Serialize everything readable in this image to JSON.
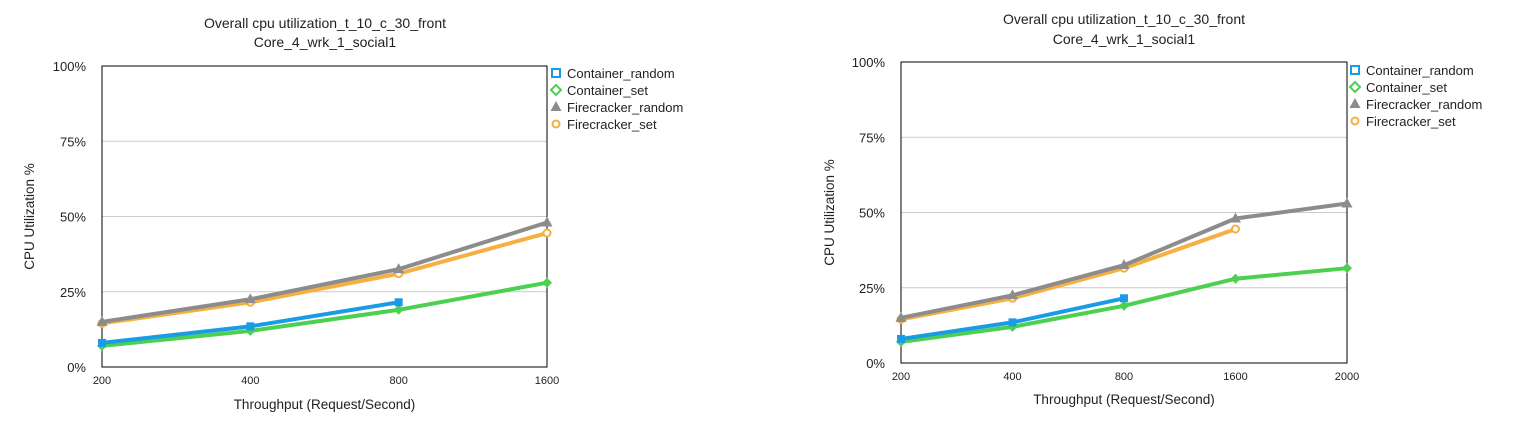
{
  "colors": {
    "Container_random": "#1a9be6",
    "Container_set": "#4cd050",
    "Firecracker_random": "#8c8c8c",
    "Firecracker_set": "#f5b041",
    "grid": "#cccccc",
    "plot_border": "#000000"
  },
  "chart_data": [
    {
      "type": "line",
      "title": "Overall cpu utilization_t_10_c_30_front",
      "subtitle": "Core_4_wrk_1_social1",
      "xlabel": "Throughput (Request/Second)",
      "ylabel": "CPU Utilization %",
      "x_scale": "categorical",
      "categories": [
        "200",
        "400",
        "800",
        "1600"
      ],
      "ylim": [
        0,
        100
      ],
      "yticks": [
        0,
        25,
        50,
        75,
        100
      ],
      "ytick_labels": [
        "0%",
        "25%",
        "50%",
        "75%",
        "100%"
      ],
      "grid": "horizontal",
      "legend": "right",
      "series": [
        {
          "name": "Container_random",
          "marker": "square",
          "values": [
            8,
            13.5,
            21.5,
            null
          ]
        },
        {
          "name": "Container_set",
          "marker": "diamond",
          "values": [
            7,
            12,
            19,
            28
          ]
        },
        {
          "name": "Firecracker_random",
          "marker": "triangle",
          "values": [
            15,
            22.5,
            32.5,
            48
          ]
        },
        {
          "name": "Firecracker_set",
          "marker": "circle",
          "values": [
            14.5,
            21.5,
            31,
            44.5
          ]
        }
      ]
    },
    {
      "type": "line",
      "title": "Overall cpu utilization_t_10_c_30_front",
      "subtitle": "Core_4_wrk_1_social1",
      "xlabel": "Throughput (Request/Second)",
      "ylabel": "CPU Utilization %",
      "x_scale": "categorical",
      "categories": [
        "200",
        "400",
        "800",
        "1600",
        "2000"
      ],
      "ylim": [
        0,
        100
      ],
      "yticks": [
        0,
        25,
        50,
        75,
        100
      ],
      "ytick_labels": [
        "0%",
        "25%",
        "50%",
        "75%",
        "100%"
      ],
      "grid": "horizontal",
      "legend": "right",
      "series": [
        {
          "name": "Container_random",
          "marker": "square",
          "values": [
            8,
            13.5,
            21.5,
            null,
            null
          ]
        },
        {
          "name": "Container_set",
          "marker": "diamond",
          "values": [
            7,
            12,
            19,
            28,
            31.5
          ]
        },
        {
          "name": "Firecracker_random",
          "marker": "triangle",
          "values": [
            15,
            22.5,
            32.5,
            48,
            53
          ]
        },
        {
          "name": "Firecracker_set",
          "marker": "circle",
          "values": [
            14.5,
            21.5,
            31.5,
            44.5,
            null
          ]
        }
      ]
    }
  ]
}
